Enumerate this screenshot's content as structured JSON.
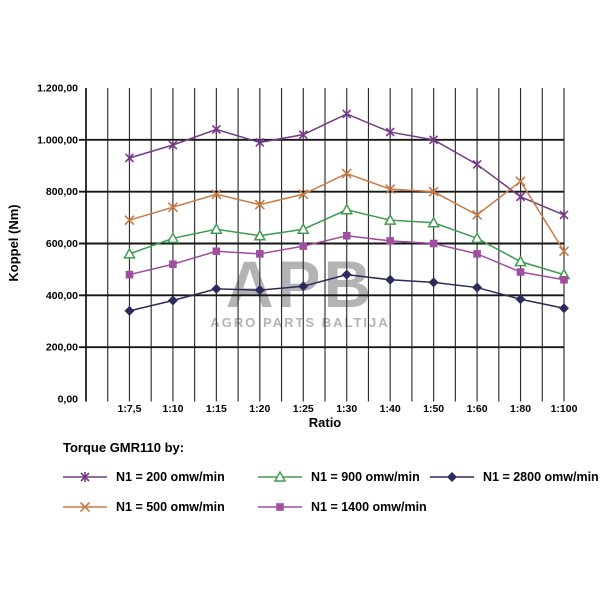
{
  "chart_data": {
    "type": "line",
    "title": "",
    "xlabel": "Ratio",
    "ylabel": "Koppel (Nm)",
    "ylim": [
      0,
      1200
    ],
    "ytick_step": 200,
    "ytick_labels": [
      "0,00",
      "200,00",
      "400,00",
      "600,00",
      "800,00",
      "1.000,00",
      "1.200,00"
    ],
    "grid": {
      "horizontal": true,
      "vertical": true,
      "vertical_minor": true
    },
    "legend_position": "bottom",
    "categories": [
      "1:7,5",
      "1:10",
      "1:15",
      "1:20",
      "1:25",
      "1:30",
      "1:40",
      "1:50",
      "1:60",
      "1:80",
      "1:100"
    ],
    "series": [
      {
        "name": "N1 = 200 omw/min",
        "color": "#733B85",
        "marker": "star",
        "values": [
          930,
          980,
          1040,
          990,
          1020,
          1100,
          1030,
          1000,
          905,
          780,
          710
        ]
      },
      {
        "name": "N1 = 500 omw/min",
        "color": "#C97B45",
        "marker": "x",
        "values": [
          690,
          740,
          790,
          750,
          790,
          870,
          810,
          800,
          710,
          840,
          570
        ]
      },
      {
        "name": "N1 = 900 omw/min",
        "color": "#3E9B4F",
        "marker": "triangle-open",
        "values": [
          560,
          620,
          655,
          630,
          655,
          730,
          690,
          680,
          620,
          530,
          480
        ]
      },
      {
        "name": "N1 = 1400 omw/min",
        "color": "#A04E9E",
        "marker": "square",
        "values": [
          480,
          520,
          570,
          560,
          590,
          630,
          610,
          600,
          560,
          490,
          460
        ]
      },
      {
        "name": "N1 = 2800 omw/min",
        "color": "#2B2B5C",
        "marker": "diamond",
        "values": [
          340,
          380,
          425,
          420,
          435,
          480,
          460,
          450,
          430,
          385,
          350
        ]
      }
    ]
  },
  "legend": {
    "title": "Torque GMR110 by:"
  },
  "watermark": {
    "line1": "APB",
    "line2": "AGRO PARTS BALTIJA"
  }
}
